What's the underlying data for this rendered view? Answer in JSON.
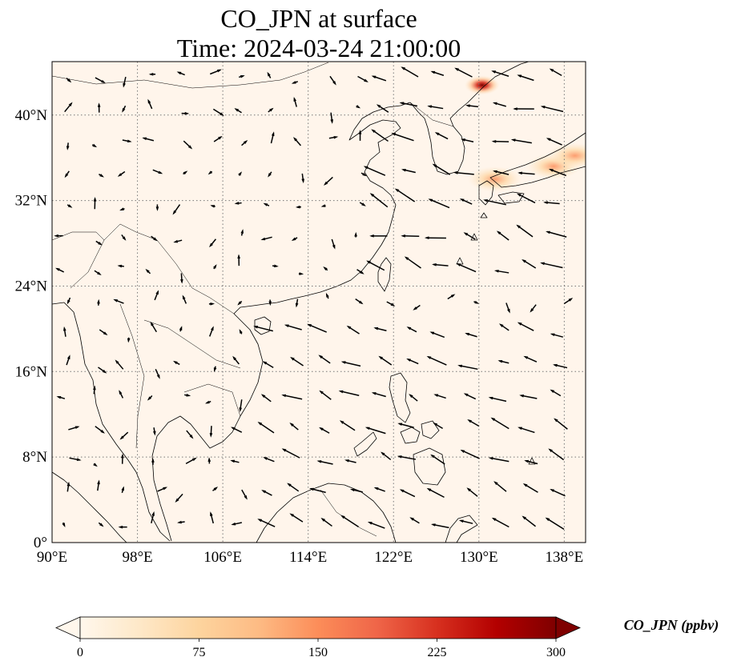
{
  "title": {
    "line1": "CO_JPN at surface",
    "line2": "Time: 2024-03-24 21:00:00"
  },
  "map": {
    "lon_range": [
      90,
      140
    ],
    "lat_range": [
      0,
      45
    ],
    "lon_ticks": [
      90,
      98,
      106,
      114,
      122,
      130,
      138
    ],
    "lon_tick_labels": [
      "90°E",
      "98°E",
      "106°E",
      "114°E",
      "122°E",
      "130°E",
      "138°E"
    ],
    "lat_ticks": [
      0,
      8,
      16,
      24,
      32,
      40
    ],
    "lat_tick_labels": [
      "0°",
      "8°N",
      "16°N",
      "24°N",
      "32°N",
      "40°N"
    ],
    "gridlines": true,
    "gridline_style": "dotted",
    "features": [
      "coastlines",
      "country borders",
      "wind vectors"
    ],
    "background_color": "#fff5eb"
  },
  "plumes": [
    {
      "region": "northeast China near Vladivostok",
      "lon": 130.3,
      "lat": 42.8,
      "level": "high"
    },
    {
      "region": "southern Korea / Kyushu",
      "lon": 131.5,
      "lat": 34.0,
      "level": "moderate"
    },
    {
      "region": "Honshu, Japan",
      "lon": 137.0,
      "lat": 35.2,
      "level": "moderate"
    },
    {
      "region": "central Honshu hotspot",
      "lon": 139.0,
      "lat": 36.2,
      "level": "moderate"
    }
  ],
  "colorbar": {
    "label": "CO_JPN (ppbv)",
    "min": 0,
    "max": 300,
    "ticks": [
      0,
      75,
      150,
      225,
      300
    ],
    "tick_labels": [
      "0",
      "75",
      "150",
      "225",
      "300"
    ],
    "colormap": "OrRd",
    "colors": [
      "#fff7ec",
      "#fee8c8",
      "#fdd49e",
      "#fdbb84",
      "#fc8d59",
      "#ef6548",
      "#d7301f",
      "#b30000",
      "#7f0000"
    ],
    "extend": "both"
  }
}
